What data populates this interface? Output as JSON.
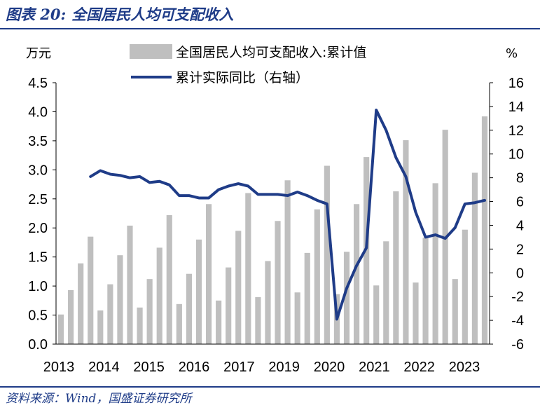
{
  "header": {
    "figure_label": "图表 20:",
    "title": "全国居民人均可支配收入"
  },
  "footer": {
    "source": "资料来源：Wind，国盛证券研究所"
  },
  "chart_data": {
    "type": "bar+line",
    "left_unit": "万元",
    "right_unit": "%",
    "left_ylim": [
      0,
      4.5
    ],
    "right_ylim": [
      -6,
      16
    ],
    "left_ticks": [
      "4.5",
      "4.0",
      "3.5",
      "3.0",
      "2.5",
      "2.0",
      "1.5",
      "1.0",
      "0.5",
      "0.0"
    ],
    "right_ticks": [
      "16",
      "14",
      "12",
      "10",
      "8",
      "6",
      "4",
      "2",
      "0",
      "-2",
      "-4",
      "-6"
    ],
    "x_tick_labels": [
      "2013",
      "2014",
      "2015",
      "2016",
      "2017",
      "2019",
      "2020",
      "2021",
      "2022",
      "2023"
    ],
    "legend": {
      "bar_label": "全国居民人均可支配收入:累计值",
      "line_label": "累计实际同比（右轴）"
    },
    "colors": {
      "bar": "#bfbfbf",
      "line": "#1f3c88"
    },
    "periods": [
      "2013Q1",
      "2013Q2",
      "2013Q3",
      "2013Q4",
      "2014Q1",
      "2014Q2",
      "2014Q3",
      "2014Q4",
      "2015Q1",
      "2015Q2",
      "2015Q3",
      "2015Q4",
      "2016Q1",
      "2016Q2",
      "2016Q3",
      "2016Q4",
      "2017Q1",
      "2017Q2",
      "2017Q3",
      "2017Q4",
      "2018Q1",
      "2018Q2",
      "2018Q3",
      "2018Q4",
      "2019Q1",
      "2019Q2",
      "2019Q3",
      "2019Q4",
      "2020Q1",
      "2020Q2",
      "2020Q3",
      "2020Q4",
      "2021Q1",
      "2021Q2",
      "2021Q3",
      "2021Q4",
      "2022Q1",
      "2022Q2",
      "2022Q3",
      "2022Q4",
      "2023Q1",
      "2023Q2",
      "2023Q3",
      "2023Q4"
    ],
    "income": [
      0.51,
      0.93,
      1.39,
      1.85,
      0.58,
      1.03,
      1.53,
      2.04,
      0.63,
      1.12,
      1.66,
      2.22,
      0.69,
      1.21,
      1.8,
      2.41,
      0.75,
      1.32,
      1.95,
      2.6,
      0.81,
      1.43,
      2.12,
      2.82,
      0.89,
      1.57,
      2.32,
      3.07,
      0.86,
      1.59,
      2.41,
      3.22,
      1.01,
      1.77,
      2.63,
      3.51,
      1.06,
      1.83,
      2.77,
      3.69,
      1.12,
      1.97,
      2.95,
      3.92
    ],
    "real_yoy": [
      null,
      null,
      null,
      8.1,
      8.6,
      8.3,
      8.2,
      8.0,
      8.1,
      7.6,
      7.7,
      7.4,
      6.5,
      6.5,
      6.3,
      6.3,
      7.0,
      7.3,
      7.5,
      7.3,
      6.6,
      6.6,
      6.6,
      6.5,
      6.8,
      6.5,
      6.1,
      5.8,
      -3.9,
      -1.3,
      0.6,
      2.1,
      13.7,
      12.0,
      9.7,
      8.1,
      5.1,
      3.0,
      3.2,
      2.9,
      3.8,
      5.8,
      5.9,
      6.1
    ]
  }
}
